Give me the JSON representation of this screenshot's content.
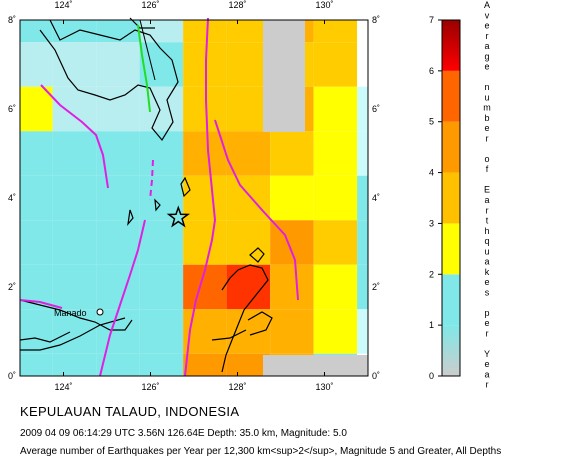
{
  "title": "KEPULAUAN TALAUD, INDONESIA",
  "event_line": "2009 04 09 06:14:29 UTC 3.56N 126.64E Depth: 35.0 km, Magnitude: 5.0",
  "description": "Average number of Earthquakes per Year per 12,300 km<sup>2</sup>, Magnitude 5 and Greater, All Depths",
  "map": {
    "lon_range": [
      123,
      131
    ],
    "lat_range": [
      0,
      8
    ],
    "lon_ticks": [
      "124˚",
      "126˚",
      "128˚",
      "130˚"
    ],
    "lat_ticks": [
      "0˚",
      "2˚",
      "4˚",
      "6˚",
      "8˚"
    ],
    "city": "Manado",
    "epicenter": {
      "lon": 126.64,
      "lat": 3.56
    },
    "grid_step_deg": 1,
    "grid": [
      [
        1,
        1,
        1,
        1.5,
        2.5,
        2.5,
        3,
        2.5,
        0,
        0
      ],
      [
        1.5,
        1.5,
        1.5,
        1,
        2.5,
        2.5,
        2.5,
        2.5,
        0,
        0
      ],
      [
        2,
        1.5,
        1.5,
        1.5,
        2.5,
        2.5,
        3,
        2,
        0.5,
        0
      ],
      [
        1,
        1,
        1,
        1,
        3,
        3,
        2.5,
        2,
        0.5,
        0
      ],
      [
        1,
        1,
        1,
        1,
        2.5,
        2.5,
        2,
        2,
        1,
        0
      ],
      [
        1,
        1,
        1,
        1,
        2.5,
        2.5,
        3.5,
        2.5,
        1,
        0
      ],
      [
        1,
        1,
        1,
        1,
        4,
        5,
        3,
        2,
        1,
        0
      ],
      [
        1,
        1,
        1,
        1,
        3,
        3,
        3,
        2,
        0.5,
        0
      ],
      [
        1,
        1,
        1,
        1,
        3.5,
        3.5,
        3,
        1,
        0,
        0
      ]
    ],
    "grid_rows": [
      8,
      7,
      6,
      5,
      4,
      3,
      2,
      1,
      0
    ],
    "grid_cols": [
      123,
      124,
      125,
      126,
      127,
      128,
      129,
      130,
      131,
      132
    ]
  },
  "colorbar": {
    "ticks": [
      "0",
      "1",
      "2",
      "3",
      "4",
      "5",
      "6",
      "7"
    ],
    "label": "Average number of Earthquakes per Year",
    "stops": [
      "#cccccc",
      "#80e8e8",
      "#ffff00",
      "#ffc000",
      "#ff9900",
      "#ff6600",
      "#ff0000",
      "#cc0000",
      "#990000"
    ]
  }
}
